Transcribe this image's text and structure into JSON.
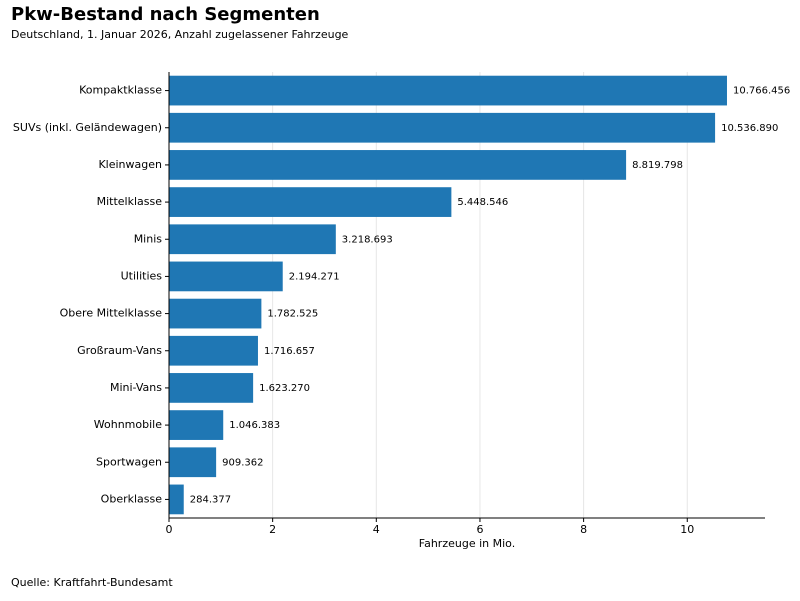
{
  "chart_data": {
    "type": "barh",
    "title": "Pkw-Bestand nach Segmenten",
    "subtitle": "Deutschland, 1. Januar 2026, Anzahl zugelassener Fahrzeuge",
    "xlabel": "Fahrzeuge in Mio.",
    "source": "Quelle: Kraftfahrt-Bundesamt",
    "categories": [
      "Kompaktklasse",
      "SUVs (inkl. Geländewagen)",
      "Kleinwagen",
      "Mittelklasse",
      "Minis",
      "Utilities",
      "Obere Mittelklasse",
      "Großraum-Vans",
      "Mini-Vans",
      "Wohnmobile",
      "Sportwagen",
      "Oberklasse"
    ],
    "values": [
      10.766456,
      10.53689,
      8.819798,
      5.448546,
      3.218693,
      2.194271,
      1.782525,
      1.716657,
      1.62327,
      1.046383,
      0.909362,
      0.284377
    ],
    "value_labels": [
      "10.766.456",
      "10.536.890",
      "8.819.798",
      "5.448.546",
      "3.218.693",
      "2.194.271",
      "1.782.525",
      "1.716.657",
      "1.623.270",
      "1.046.383",
      "909.362",
      "284.377"
    ],
    "color": "#1f77b4",
    "xlim": [
      0,
      11.5
    ],
    "xticks": [
      0,
      2,
      4,
      6,
      8,
      10
    ],
    "grid": true
  }
}
